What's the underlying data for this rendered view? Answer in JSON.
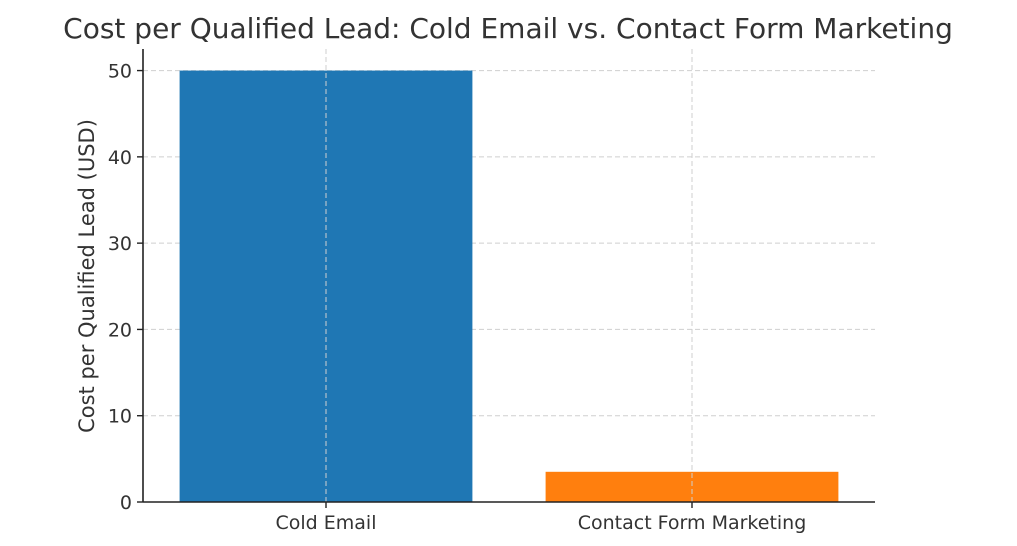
{
  "chart_data": {
    "type": "bar",
    "title": "Cost per Qualified Lead: Cold Email vs. Contact Form Marketing",
    "xlabel": "",
    "ylabel": "Cost per Qualified Lead (USD)",
    "categories": [
      "Cold Email",
      "Contact Form Marketing"
    ],
    "values": [
      50,
      3.5
    ],
    "colors": [
      "#1f77b4",
      "#ff7f0e"
    ],
    "ylim": [
      0,
      52.5
    ],
    "yticks": [
      0,
      10,
      20,
      30,
      40,
      50
    ],
    "ytick_labels": [
      "0",
      "10",
      "20",
      "30",
      "40",
      "50"
    ],
    "grid": true,
    "legend": "none"
  }
}
